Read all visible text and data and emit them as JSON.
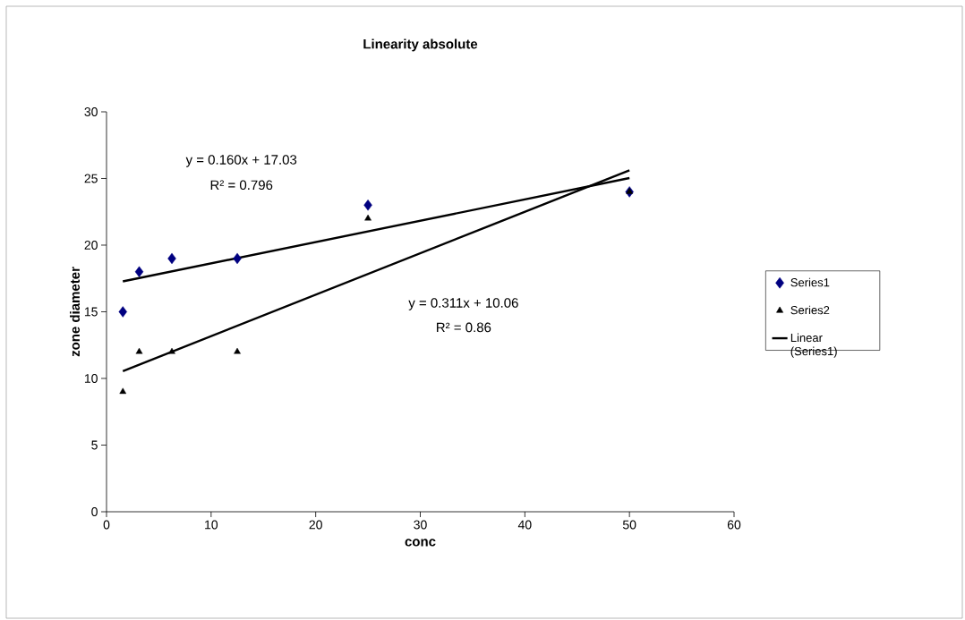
{
  "chart_data": {
    "type": "scatter",
    "title": "Linearity absolute",
    "xlabel": "conc",
    "ylabel": "zone diameter",
    "xlim": [
      0,
      60
    ],
    "ylim": [
      0,
      30
    ],
    "xticks": [
      0,
      10,
      20,
      30,
      40,
      50,
      60
    ],
    "yticks": [
      0,
      5,
      10,
      15,
      20,
      25,
      30
    ],
    "grid": false,
    "legend": "right",
    "series": [
      {
        "name": "Series1",
        "type": "scatter",
        "marker": "diamond",
        "color": "#000080",
        "x": [
          1.5625,
          3.125,
          6.25,
          12.5,
          25,
          50
        ],
        "values": [
          15,
          18,
          19,
          19,
          23,
          24
        ]
      },
      {
        "name": "Series2",
        "type": "scatter",
        "marker": "triangle",
        "color": "#000000",
        "x": [
          1.5625,
          3.125,
          6.25,
          12.5,
          25,
          50
        ],
        "values": [
          9,
          12,
          12,
          12,
          22,
          24
        ]
      },
      {
        "name": "Linear (Series1)",
        "type": "line",
        "marker": "none",
        "color": "#000000",
        "x": [
          1.5625,
          50
        ],
        "values": [
          17.28,
          25.03
        ]
      },
      {
        "type": "line",
        "marker": "none",
        "color": "#000000",
        "x": [
          1.5625,
          50
        ],
        "values": [
          10.55,
          25.61
        ]
      }
    ],
    "annotations": [
      "y = 0.160x + 17.03",
      "R² = 0.796",
      "y = 0.311x + 10.06",
      "R² = 0.86"
    ]
  }
}
